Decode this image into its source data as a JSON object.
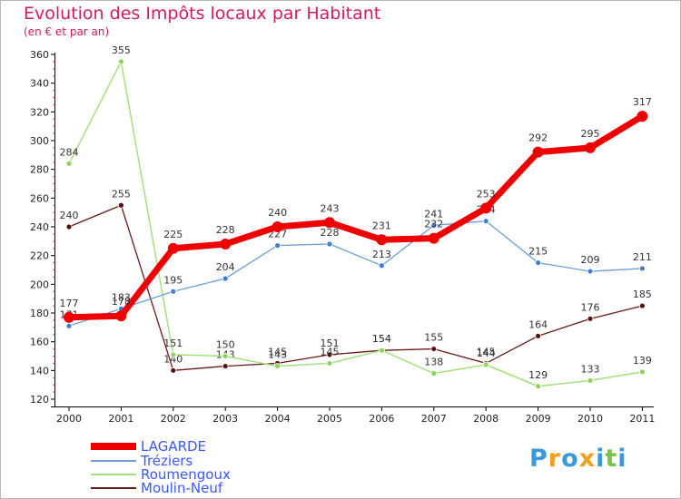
{
  "header": {
    "title": "Evolution des Impôts locaux par Habitant",
    "subtitle": "(en € et par an)"
  },
  "logo": {
    "text": "Proxiti",
    "colors": [
      "#3a9ad9",
      "#f0a020",
      "#3a9ad9",
      "#f0a020",
      "#3a9ad9",
      "#7bc143",
      "#3a9ad9"
    ]
  },
  "chart_data": {
    "type": "line",
    "title": "Evolution des Impôts locaux par Habitant",
    "subtitle": "(en € et par an)",
    "xlabel": "",
    "ylabel": "",
    "ylim": [
      120,
      360
    ],
    "y_ticks": [
      120,
      140,
      160,
      180,
      200,
      220,
      240,
      260,
      280,
      300,
      320,
      340,
      360
    ],
    "grid": false,
    "legend": "bottom-left",
    "x": [
      2000,
      2001,
      2002,
      2003,
      2004,
      2005,
      2006,
      2007,
      2008,
      2009,
      2010,
      2011
    ],
    "series": [
      {
        "name": "Moulin-Neuf",
        "color": "#6b1a1a",
        "marker": "#5a0f0f",
        "width": 1.3,
        "values": [
          240,
          255,
          140,
          143,
          145,
          151,
          154,
          155,
          145,
          164,
          176,
          185
        ]
      },
      {
        "name": "Roumengoux",
        "color": "#a4e07e",
        "marker": "#8fd45a",
        "width": 1.5,
        "values": [
          284,
          355,
          151,
          150,
          143,
          145,
          154,
          138,
          144,
          129,
          133,
          139
        ]
      },
      {
        "name": "Tréziers",
        "color": "#6d9fd6",
        "marker": "#3f7ed0",
        "width": 1.3,
        "values": [
          171,
          183,
          195,
          204,
          227,
          228,
          213,
          241,
          244,
          215,
          209,
          211
        ]
      },
      {
        "name": "LAGARDE",
        "color": "#ee0000",
        "marker": "#ee0000",
        "width": 7,
        "values": [
          177,
          178,
          225,
          228,
          240,
          243,
          231,
          232,
          253,
          292,
          295,
          317
        ]
      }
    ],
    "legend_order": [
      "LAGARDE",
      "Tréziers",
      "Roumengoux",
      "Moulin-Neuf"
    ]
  }
}
